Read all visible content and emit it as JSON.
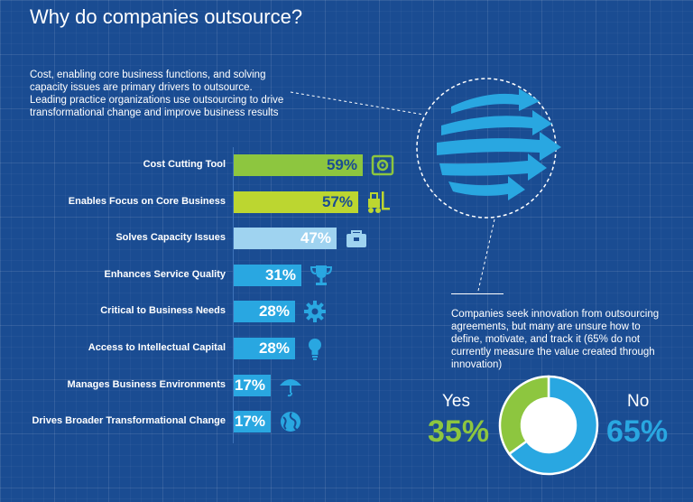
{
  "title": "Why do companies outsource?",
  "intro": "Cost, enabling core business functions, and solving capacity issues are primary drivers to outsource. Leading practice organizations use outsourcing to drive transformational change and improve business results",
  "callout": "Companies seek innovation from outsourcing agreements, but many are unsure how to define, motivate, and track it (65% do not currently measure the value created through innovation)",
  "chart_data": [
    {
      "type": "bar",
      "orientation": "horizontal",
      "categories": [
        "Cost Cutting Tool",
        "Enables Focus on Core Business",
        "Solves Capacity Issues",
        "Enhances Service Quality",
        "Critical to Business Needs",
        "Access to Intellectual Capital",
        "Manages Business Environments",
        "Drives Broader Transformational Change"
      ],
      "values": [
        59,
        57,
        47,
        31,
        28,
        28,
        17,
        17
      ],
      "value_labels": [
        "59%",
        "57%",
        "47%",
        "31%",
        "28%",
        "28%",
        "17%",
        "17%"
      ],
      "bar_colors": [
        "#8dc63f",
        "#bcd630",
        "#9fd3f0",
        "#29a7e1",
        "#29a7e1",
        "#29a7e1",
        "#29a7e1",
        "#29a7e1"
      ],
      "value_colors": [
        "#1a4c92",
        "#1a4c92",
        "#ffffff",
        "#ffffff",
        "#ffffff",
        "#ffffff",
        "#ffffff",
        "#ffffff"
      ],
      "icons": [
        "safe-icon",
        "forklift-icon",
        "toolbox-icon",
        "trophy-icon",
        "gear-icon",
        "lightbulb-icon",
        "umbrella-icon",
        "globe-icon"
      ],
      "icon_colors": [
        "#8dc63f",
        "#bcd630",
        "#9fd3f0",
        "#29a7e1",
        "#29a7e1",
        "#29a7e1",
        "#29a7e1",
        "#29a7e1"
      ],
      "xlim": [
        0,
        100
      ],
      "grid": false
    },
    {
      "type": "pie",
      "style": "donut",
      "categories": [
        "Yes",
        "No"
      ],
      "values": [
        35,
        65
      ],
      "value_labels": [
        "35%",
        "65%"
      ],
      "colors": [
        "#8dc63f",
        "#29a7e1"
      ]
    }
  ]
}
